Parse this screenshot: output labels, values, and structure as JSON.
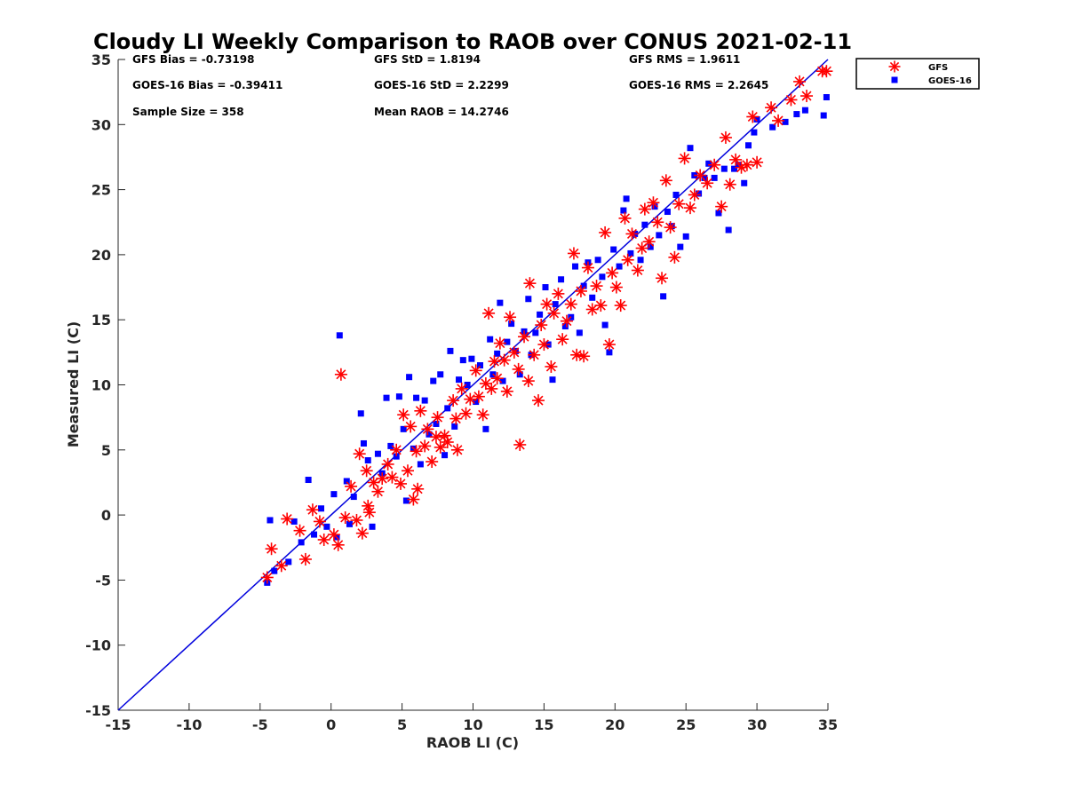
{
  "chart_data": {
    "type": "scatter",
    "title": "Cloudy LI Weekly Comparison to RAOB over CONUS 2021-02-11",
    "xlabel": "RAOB LI (C)",
    "ylabel": "Measured LI (C)",
    "xlim": [
      -15,
      35
    ],
    "ylim": [
      -15,
      35
    ],
    "xticks": [
      "-15",
      "-10",
      "-5",
      "0",
      "5",
      "10",
      "15",
      "20",
      "25",
      "30",
      "35"
    ],
    "yticks": [
      "-15",
      "-10",
      "-5",
      "0",
      "5",
      "10",
      "15",
      "20",
      "25",
      "30",
      "35"
    ],
    "grid": false,
    "legend": {
      "position": "outside-top-right",
      "entries": [
        "GFS",
        "GOES-16"
      ]
    },
    "annotations": [
      "GFS Bias = -0.73198",
      "GFS StD = 1.8194",
      "GFS RMS = 1.9611",
      "GOES-16 Bias = -0.39411",
      "GOES-16 StD = 2.2299",
      "GOES-16 RMS = 2.2645",
      "Sample Size = 358",
      "Mean RAOB = 14.2746"
    ],
    "reference_line": {
      "from": [
        -15,
        -15
      ],
      "to": [
        35,
        35
      ],
      "color": "#0000dd"
    },
    "series": [
      {
        "name": "GFS",
        "marker": "asterisk",
        "color": "#ff0000",
        "points": [
          [
            -4.5,
            -4.8
          ],
          [
            -4.2,
            -2.6
          ],
          [
            -3.5,
            -3.9
          ],
          [
            -3.1,
            -0.3
          ],
          [
            -2.2,
            -1.2
          ],
          [
            -1.8,
            -3.4
          ],
          [
            -1.3,
            0.4
          ],
          [
            -0.8,
            -0.5
          ],
          [
            -0.5,
            -1.9
          ],
          [
            0.2,
            -1.5
          ],
          [
            0.5,
            -2.3
          ],
          [
            0.7,
            10.8
          ],
          [
            1.0,
            -0.2
          ],
          [
            1.4,
            2.2
          ],
          [
            1.8,
            -0.4
          ],
          [
            2.0,
            4.7
          ],
          [
            2.2,
            -1.4
          ],
          [
            2.5,
            3.4
          ],
          [
            2.6,
            0.7
          ],
          [
            2.7,
            0.2
          ],
          [
            3.0,
            2.5
          ],
          [
            3.3,
            1.8
          ],
          [
            3.6,
            2.8
          ],
          [
            4.0,
            3.9
          ],
          [
            4.3,
            2.9
          ],
          [
            4.6,
            5.0
          ],
          [
            4.9,
            2.4
          ],
          [
            5.1,
            7.7
          ],
          [
            5.4,
            3.4
          ],
          [
            5.6,
            6.8
          ],
          [
            5.8,
            1.2
          ],
          [
            6.0,
            4.9
          ],
          [
            6.1,
            2.0
          ],
          [
            6.3,
            8.0
          ],
          [
            6.6,
            5.3
          ],
          [
            6.8,
            6.6
          ],
          [
            7.1,
            4.1
          ],
          [
            7.4,
            6.0
          ],
          [
            7.5,
            7.5
          ],
          [
            7.7,
            5.2
          ],
          [
            8.0,
            6.1
          ],
          [
            8.2,
            5.6
          ],
          [
            8.6,
            8.8
          ],
          [
            8.8,
            7.4
          ],
          [
            8.9,
            5.0
          ],
          [
            9.2,
            9.7
          ],
          [
            9.5,
            7.8
          ],
          [
            9.8,
            8.9
          ],
          [
            10.2,
            11.1
          ],
          [
            10.4,
            9.1
          ],
          [
            10.7,
            7.7
          ],
          [
            10.9,
            10.1
          ],
          [
            11.1,
            15.5
          ],
          [
            11.3,
            9.7
          ],
          [
            11.5,
            11.8
          ],
          [
            11.7,
            10.5
          ],
          [
            11.9,
            13.2
          ],
          [
            12.2,
            11.9
          ],
          [
            12.4,
            9.5
          ],
          [
            12.6,
            15.2
          ],
          [
            12.9,
            12.5
          ],
          [
            13.2,
            11.2
          ],
          [
            13.3,
            5.4
          ],
          [
            13.6,
            13.7
          ],
          [
            13.9,
            10.3
          ],
          [
            14.0,
            17.8
          ],
          [
            14.3,
            12.3
          ],
          [
            14.6,
            8.8
          ],
          [
            14.8,
            14.6
          ],
          [
            15.0,
            13.1
          ],
          [
            15.2,
            16.2
          ],
          [
            15.5,
            11.4
          ],
          [
            15.7,
            15.5
          ],
          [
            16.0,
            17.0
          ],
          [
            16.3,
            13.5
          ],
          [
            16.6,
            14.9
          ],
          [
            16.9,
            16.2
          ],
          [
            17.1,
            20.1
          ],
          [
            17.3,
            12.3
          ],
          [
            17.6,
            17.2
          ],
          [
            17.8,
            12.2
          ],
          [
            18.1,
            19.0
          ],
          [
            18.4,
            15.8
          ],
          [
            18.7,
            17.6
          ],
          [
            19.0,
            16.1
          ],
          [
            19.3,
            21.7
          ],
          [
            19.6,
            13.1
          ],
          [
            19.8,
            18.6
          ],
          [
            20.1,
            17.5
          ],
          [
            20.4,
            16.1
          ],
          [
            20.7,
            22.8
          ],
          [
            20.9,
            19.6
          ],
          [
            21.2,
            21.6
          ],
          [
            21.6,
            18.8
          ],
          [
            21.9,
            20.5
          ],
          [
            22.1,
            23.5
          ],
          [
            22.4,
            21.0
          ],
          [
            22.7,
            24.0
          ],
          [
            23.0,
            22.5
          ],
          [
            23.3,
            18.2
          ],
          [
            23.6,
            25.7
          ],
          [
            23.9,
            22.1
          ],
          [
            24.2,
            19.8
          ],
          [
            24.5,
            23.9
          ],
          [
            24.9,
            27.4
          ],
          [
            25.3,
            23.6
          ],
          [
            25.6,
            24.6
          ],
          [
            26.0,
            26.1
          ],
          [
            26.5,
            25.5
          ],
          [
            27.0,
            26.9
          ],
          [
            27.5,
            23.7
          ],
          [
            27.8,
            29.0
          ],
          [
            28.1,
            25.4
          ],
          [
            28.5,
            27.3
          ],
          [
            28.9,
            26.7
          ],
          [
            29.3,
            26.9
          ],
          [
            29.7,
            30.6
          ],
          [
            30.0,
            27.1
          ],
          [
            31.0,
            31.3
          ],
          [
            31.5,
            30.3
          ],
          [
            32.4,
            31.9
          ],
          [
            33.0,
            33.3
          ],
          [
            33.5,
            32.2
          ],
          [
            34.6,
            34.1
          ],
          [
            34.9,
            34.1
          ]
        ]
      },
      {
        "name": "GOES-16",
        "marker": "square",
        "color": "#0000ff",
        "points": [
          [
            -4.5,
            -5.2
          ],
          [
            -4.3,
            -0.4
          ],
          [
            -4.0,
            -4.3
          ],
          [
            -3.0,
            -3.6
          ],
          [
            -2.6,
            -0.5
          ],
          [
            -2.1,
            -2.1
          ],
          [
            -1.6,
            2.7
          ],
          [
            -1.2,
            -1.5
          ],
          [
            -0.7,
            0.5
          ],
          [
            -0.3,
            -0.9
          ],
          [
            0.2,
            1.6
          ],
          [
            0.4,
            -1.7
          ],
          [
            0.6,
            13.8
          ],
          [
            1.1,
            2.6
          ],
          [
            1.3,
            -0.7
          ],
          [
            1.6,
            1.4
          ],
          [
            2.1,
            7.8
          ],
          [
            2.3,
            5.5
          ],
          [
            2.6,
            4.2
          ],
          [
            2.9,
            -0.9
          ],
          [
            3.3,
            4.7
          ],
          [
            3.6,
            3.2
          ],
          [
            3.9,
            9.0
          ],
          [
            4.2,
            5.3
          ],
          [
            4.6,
            4.5
          ],
          [
            4.8,
            9.1
          ],
          [
            5.1,
            6.6
          ],
          [
            5.3,
            1.1
          ],
          [
            5.5,
            10.6
          ],
          [
            5.8,
            5.1
          ],
          [
            6.0,
            9.0
          ],
          [
            6.3,
            3.9
          ],
          [
            6.6,
            8.8
          ],
          [
            6.9,
            6.2
          ],
          [
            7.2,
            10.3
          ],
          [
            7.4,
            7.0
          ],
          [
            7.7,
            10.8
          ],
          [
            8.0,
            4.6
          ],
          [
            8.2,
            8.2
          ],
          [
            8.4,
            12.6
          ],
          [
            8.7,
            6.8
          ],
          [
            9.0,
            10.4
          ],
          [
            9.3,
            11.9
          ],
          [
            9.6,
            10.0
          ],
          [
            9.9,
            12.0
          ],
          [
            10.2,
            8.7
          ],
          [
            10.5,
            11.5
          ],
          [
            10.9,
            6.6
          ],
          [
            11.2,
            13.5
          ],
          [
            11.4,
            10.8
          ],
          [
            11.7,
            12.4
          ],
          [
            11.9,
            16.3
          ],
          [
            12.1,
            10.3
          ],
          [
            12.4,
            13.3
          ],
          [
            12.7,
            14.7
          ],
          [
            13.0,
            12.6
          ],
          [
            13.3,
            10.8
          ],
          [
            13.6,
            14.1
          ],
          [
            13.9,
            16.6
          ],
          [
            14.1,
            12.3
          ],
          [
            14.4,
            14.0
          ],
          [
            14.7,
            15.4
          ],
          [
            15.1,
            17.5
          ],
          [
            15.3,
            13.1
          ],
          [
            15.6,
            10.4
          ],
          [
            15.8,
            16.2
          ],
          [
            16.2,
            18.1
          ],
          [
            16.5,
            14.5
          ],
          [
            16.9,
            15.2
          ],
          [
            17.2,
            19.1
          ],
          [
            17.5,
            14.0
          ],
          [
            17.8,
            17.6
          ],
          [
            18.1,
            19.4
          ],
          [
            18.4,
            16.7
          ],
          [
            18.8,
            19.6
          ],
          [
            19.1,
            18.3
          ],
          [
            19.3,
            14.6
          ],
          [
            19.6,
            12.5
          ],
          [
            19.9,
            20.4
          ],
          [
            20.3,
            19.1
          ],
          [
            20.6,
            23.4
          ],
          [
            20.8,
            24.3
          ],
          [
            21.1,
            20.1
          ],
          [
            21.4,
            21.6
          ],
          [
            21.8,
            19.6
          ],
          [
            22.1,
            22.3
          ],
          [
            22.5,
            20.6
          ],
          [
            22.8,
            23.7
          ],
          [
            23.1,
            21.5
          ],
          [
            23.4,
            16.8
          ],
          [
            23.7,
            23.3
          ],
          [
            24.0,
            22.2
          ],
          [
            24.3,
            24.6
          ],
          [
            24.6,
            20.6
          ],
          [
            25.0,
            21.4
          ],
          [
            25.3,
            28.2
          ],
          [
            25.6,
            26.1
          ],
          [
            25.9,
            24.7
          ],
          [
            26.3,
            25.9
          ],
          [
            26.6,
            27.0
          ],
          [
            27.0,
            25.9
          ],
          [
            27.3,
            23.2
          ],
          [
            27.7,
            26.6
          ],
          [
            28.0,
            21.9
          ],
          [
            28.4,
            26.6
          ],
          [
            28.7,
            26.9
          ],
          [
            29.1,
            25.5
          ],
          [
            29.4,
            28.4
          ],
          [
            29.8,
            29.4
          ],
          [
            30.0,
            30.4
          ],
          [
            31.1,
            29.8
          ],
          [
            32.0,
            30.2
          ],
          [
            32.8,
            30.8
          ],
          [
            33.4,
            31.1
          ],
          [
            34.7,
            30.7
          ],
          [
            34.9,
            32.1
          ]
        ]
      }
    ]
  }
}
